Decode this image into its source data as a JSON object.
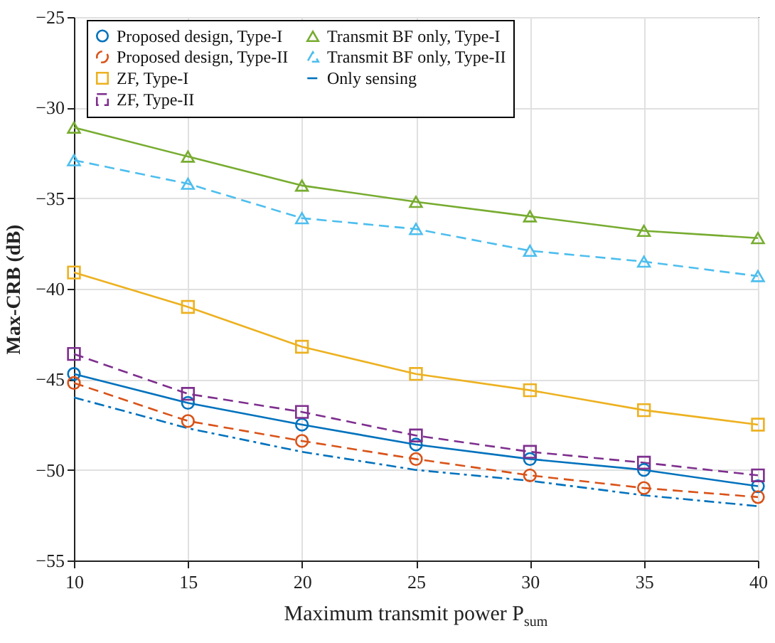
{
  "chart_data": {
    "type": "line",
    "xlabel": "Maximum transmit power P$_{sum}$",
    "ylabel": "Max-CRB (dB)",
    "x": [
      10,
      15,
      20,
      25,
      30,
      35,
      40
    ],
    "xlim": [
      10,
      40
    ],
    "xticks": [
      10,
      15,
      20,
      25,
      30,
      35,
      40
    ],
    "ylim": [
      -55,
      -25
    ],
    "yticks": [
      -55,
      -50,
      -45,
      -40,
      -35,
      -30,
      -25
    ],
    "grid": true,
    "legend": "top",
    "series": [
      {
        "name": "Proposed design, Type-I",
        "color": "#0072bd",
        "marker": "circle",
        "line_style": "solid",
        "values": [
          -44.7,
          -46.3,
          -47.5,
          -48.6,
          -49.4,
          -50.0,
          -50.9
        ]
      },
      {
        "name": "Proposed design, Type-II",
        "color": "#d95319",
        "marker": "circle",
        "line_style": "dashed",
        "values": [
          -45.2,
          -47.3,
          -48.4,
          -49.4,
          -50.3,
          -51.0,
          -51.5
        ]
      },
      {
        "name": "ZF, Type-I",
        "color": "#edb120",
        "marker": "square",
        "line_style": "solid",
        "values": [
          -39.1,
          -41.0,
          -43.2,
          -44.7,
          -45.6,
          -46.7,
          -47.5
        ]
      },
      {
        "name": "ZF, Type-II",
        "color": "#7e2f8e",
        "marker": "square",
        "line_style": "dashed",
        "values": [
          -43.6,
          -45.8,
          -46.8,
          -48.1,
          -49.0,
          -49.6,
          -50.3
        ]
      },
      {
        "name": "Transmit BF only, Type-I",
        "color": "#77ac30",
        "marker": "triangle",
        "line_style": "solid",
        "values": [
          -31.1,
          -32.7,
          -34.3,
          -35.2,
          -36.0,
          -36.8,
          -37.2
        ]
      },
      {
        "name": "Transmit BF only, Type-II",
        "color": "#4dbeee",
        "marker": "triangle",
        "line_style": "dashed",
        "values": [
          -32.9,
          -34.2,
          -36.1,
          -36.7,
          -37.9,
          -38.5,
          -39.3
        ]
      },
      {
        "name": "Only sensing",
        "color": "#0072bd",
        "marker": "none",
        "line_style": "dashdot",
        "values": [
          -46.0,
          -47.7,
          -49.0,
          -50.0,
          -50.6,
          -51.4,
          -52.0
        ]
      }
    ]
  }
}
